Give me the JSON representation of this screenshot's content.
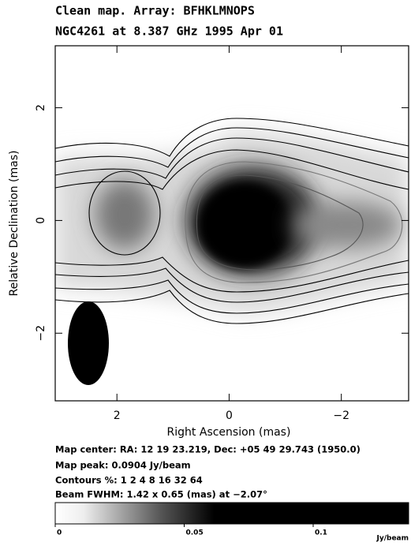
{
  "chart_data": {
    "type": "image-map",
    "title": "Clean map.  Array: BFHKLMNOPS",
    "subtitle": "NGC4261 at 8.387 GHz 1995 Apr 01",
    "x_label": "Right Ascension   (mas)",
    "y_label": "Relative Declination   (mas)",
    "xlim": [
      3.1,
      -3.2
    ],
    "ylim": [
      -3.2,
      3.1
    ],
    "xticks": [
      2,
      0,
      {
        "value": -2,
        "label": "−2"
      }
    ],
    "yticks": [
      2,
      0,
      {
        "value": -2,
        "label": "−2"
      }
    ],
    "annotations": [
      "Map center:  RA: 12 19 23.219,   Dec: +05 49 29.743 (1950.0)",
      "Map peak: 0.0904 Jy/beam",
      "Contours %: 1 2 4 8 16 32 64",
      "Beam FWHM: 1.42 x 0.65 (mas) at −2.07°"
    ],
    "colorbar": {
      "label": "Jy/beam",
      "lim": [
        0,
        0.137
      ],
      "ticks": [
        0,
        0.05,
        0.1
      ]
    }
  }
}
